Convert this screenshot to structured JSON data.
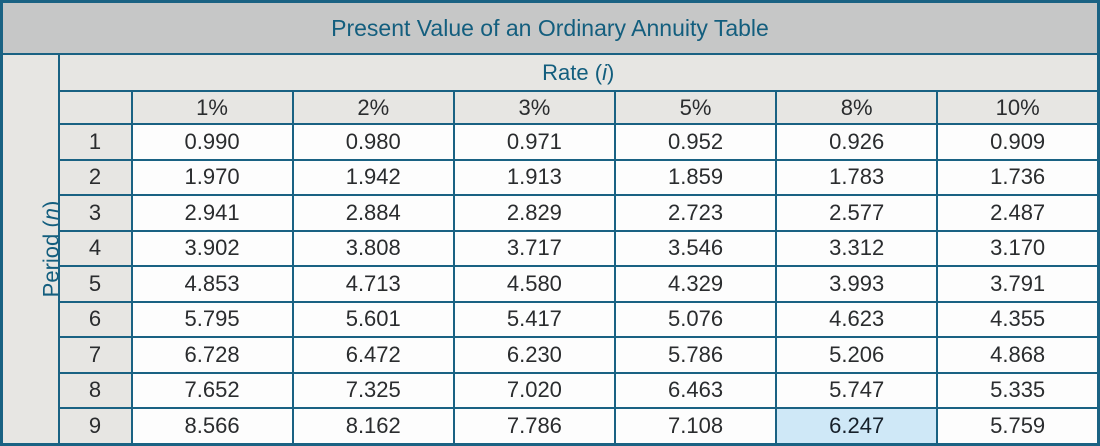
{
  "chart_data": {
    "type": "table",
    "title": "Present Value of an Ordinary Annuity Table",
    "column_group_label": "Rate (i)",
    "row_group_label": "Period (n)",
    "columns": [
      "1%",
      "2%",
      "3%",
      "5%",
      "8%",
      "10%"
    ],
    "rows": [
      {
        "period": "1",
        "values": [
          "0.990",
          "0.980",
          "0.971",
          "0.952",
          "0.926",
          "0.909"
        ]
      },
      {
        "period": "2",
        "values": [
          "1.970",
          "1.942",
          "1.913",
          "1.859",
          "1.783",
          "1.736"
        ]
      },
      {
        "period": "3",
        "values": [
          "2.941",
          "2.884",
          "2.829",
          "2.723",
          "2.577",
          "2.487"
        ]
      },
      {
        "period": "4",
        "values": [
          "3.902",
          "3.808",
          "3.717",
          "3.546",
          "3.312",
          "3.170"
        ]
      },
      {
        "period": "5",
        "values": [
          "4.853",
          "4.713",
          "4.580",
          "4.329",
          "3.993",
          "3.791"
        ]
      },
      {
        "period": "6",
        "values": [
          "5.795",
          "5.601",
          "5.417",
          "5.076",
          "4.623",
          "4.355"
        ]
      },
      {
        "period": "7",
        "values": [
          "6.728",
          "6.472",
          "6.230",
          "5.786",
          "5.206",
          "4.868"
        ]
      },
      {
        "period": "8",
        "values": [
          "7.652",
          "7.325",
          "7.020",
          "6.463",
          "5.747",
          "5.335"
        ]
      },
      {
        "period": "9",
        "values": [
          "8.566",
          "8.162",
          "7.786",
          "7.108",
          "6.247",
          "5.759"
        ]
      }
    ],
    "highlighted_cell": {
      "period": "9",
      "rate": "8%",
      "value": "6.247"
    },
    "layout": {
      "grid": "on",
      "legend": "none"
    }
  },
  "labels": {
    "rate_prefix": "Rate (",
    "rate_symbol": "i",
    "rate_suffix": ")",
    "period_prefix": "Period (",
    "period_symbol": "n",
    "period_suffix": ")"
  },
  "colors": {
    "border_teal": "#1a6283",
    "heading_text_teal": "#135e7e",
    "title_bar_gray": "#c6c7c7",
    "header_gray": "#e7e6e3",
    "data_cell_white": "#fdfdfd",
    "data_text": "#2a2c2e",
    "highlight_blue": "#cfe8f7"
  }
}
